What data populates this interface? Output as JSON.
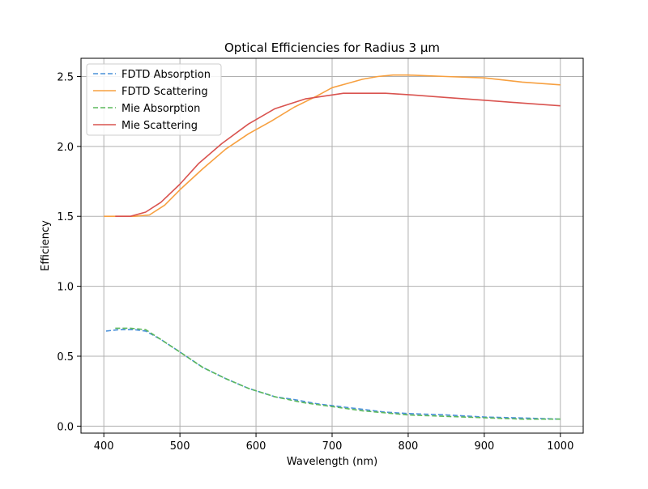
{
  "chart_data": {
    "type": "line",
    "title": "Optical Efficiencies for Radius 3 µm",
    "xlabel": "Wavelength (nm)",
    "ylabel": "Efficiency",
    "xlim": [
      370,
      1030
    ],
    "ylim": [
      -0.05,
      2.63
    ],
    "xticks": [
      400,
      500,
      600,
      700,
      800,
      900,
      1000
    ],
    "yticks": [
      0.0,
      0.5,
      1.0,
      1.5,
      2.0,
      2.5
    ],
    "xtick_labels": [
      "400",
      "500",
      "600",
      "700",
      "800",
      "900",
      "1000"
    ],
    "ytick_labels": [
      "0.0",
      "0.5",
      "1.0",
      "1.5",
      "2.0",
      "2.5"
    ],
    "grid": true,
    "legend_position": "top-left",
    "series": [
      {
        "name": "FDTD Absorption",
        "color": "#4a90d9",
        "dash": true,
        "x": [
          403,
          420,
          440,
          455,
          475,
          500,
          530,
          560,
          590,
          625,
          650,
          680,
          710,
          740,
          770,
          800,
          850,
          900,
          950,
          1000
        ],
        "y": [
          0.68,
          0.69,
          0.69,
          0.68,
          0.62,
          0.53,
          0.42,
          0.34,
          0.27,
          0.21,
          0.19,
          0.16,
          0.14,
          0.12,
          0.1,
          0.09,
          0.08,
          0.065,
          0.058,
          0.05
        ]
      },
      {
        "name": "FDTD Scattering",
        "color": "#f7a040",
        "dash": false,
        "x": [
          400,
          420,
          440,
          460,
          480,
          500,
          530,
          560,
          590,
          620,
          650,
          680,
          700,
          720,
          740,
          760,
          780,
          800,
          850,
          900,
          950,
          1000
        ],
        "y": [
          1.5,
          1.5,
          1.5,
          1.51,
          1.58,
          1.69,
          1.84,
          1.98,
          2.09,
          2.18,
          2.28,
          2.36,
          2.42,
          2.45,
          2.48,
          2.5,
          2.51,
          2.51,
          2.5,
          2.49,
          2.46,
          2.44
        ]
      },
      {
        "name": "Mie Absorption",
        "color": "#5cb85c",
        "dash": true,
        "x": [
          415,
          435,
          455,
          475,
          500,
          530,
          560,
          590,
          625,
          660,
          700,
          740,
          800,
          850,
          900,
          950,
          1000
        ],
        "y": [
          0.7,
          0.7,
          0.69,
          0.62,
          0.53,
          0.42,
          0.34,
          0.27,
          0.21,
          0.17,
          0.14,
          0.11,
          0.08,
          0.07,
          0.06,
          0.05,
          0.05
        ]
      },
      {
        "name": "Mie Scattering",
        "color": "#d9534f",
        "dash": false,
        "x": [
          415,
          435,
          455,
          475,
          500,
          525,
          555,
          590,
          625,
          665,
          715,
          770,
          800,
          850,
          900,
          950,
          1000
        ],
        "y": [
          1.5,
          1.5,
          1.53,
          1.6,
          1.73,
          1.88,
          2.02,
          2.16,
          2.27,
          2.34,
          2.38,
          2.38,
          2.37,
          2.35,
          2.33,
          2.31,
          2.29
        ]
      }
    ]
  }
}
